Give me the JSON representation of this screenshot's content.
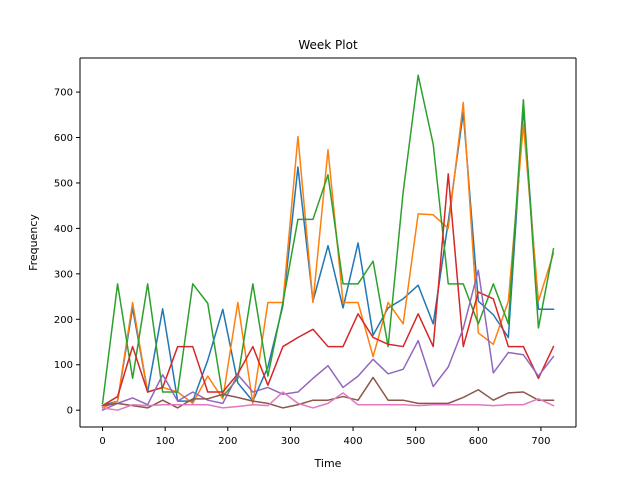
{
  "chart_data": {
    "type": "line",
    "title": "Week Plot",
    "xlabel": "Time",
    "ylabel": "Frequency",
    "xlim": [
      -36,
      756
    ],
    "ylim": [
      -37,
      775
    ],
    "xticks": [
      0,
      100,
      200,
      300,
      400,
      500,
      600,
      700
    ],
    "yticks": [
      0,
      100,
      200,
      300,
      400,
      500,
      600,
      700
    ],
    "x": [
      0,
      24,
      48,
      72,
      96,
      120,
      144,
      168,
      192,
      216,
      240,
      264,
      288,
      312,
      336,
      360,
      384,
      408,
      432,
      456,
      480,
      504,
      528,
      552,
      576,
      600,
      624,
      648,
      672,
      696,
      720
    ],
    "series": [
      {
        "color": "#1f77b4",
        "values": [
          10,
          20,
          225,
          40,
          223,
          20,
          20,
          110,
          222,
          60,
          20,
          95,
          230,
          535,
          240,
          362,
          225,
          368,
          165,
          225,
          245,
          275,
          190,
          415,
          655,
          240,
          210,
          160,
          665,
          222,
          222
        ]
      },
      {
        "color": "#ff7f0e",
        "values": [
          5,
          20,
          237,
          40,
          50,
          40,
          15,
          75,
          25,
          237,
          15,
          237,
          237,
          602,
          237,
          573,
          237,
          237,
          118,
          237,
          190,
          432,
          430,
          400,
          677,
          170,
          145,
          240,
          630,
          240,
          345
        ]
      },
      {
        "color": "#2ca02c",
        "values": [
          15,
          278,
          70,
          278,
          40,
          40,
          278,
          235,
          30,
          70,
          278,
          75,
          237,
          420,
          420,
          518,
          278,
          278,
          328,
          140,
          480,
          737,
          585,
          278,
          278,
          190,
          278,
          190,
          683,
          181,
          355
        ]
      },
      {
        "color": "#d62728",
        "values": [
          10,
          30,
          140,
          40,
          50,
          140,
          140,
          40,
          40,
          80,
          140,
          55,
          140,
          160,
          178,
          140,
          140,
          212,
          160,
          145,
          140,
          212,
          140,
          520,
          140,
          260,
          245,
          140,
          140,
          70,
          140
        ]
      },
      {
        "color": "#9467bd",
        "values": [
          0,
          15,
          27,
          12,
          78,
          20,
          40,
          22,
          15,
          78,
          40,
          50,
          35,
          40,
          70,
          98,
          50,
          75,
          112,
          80,
          90,
          153,
          52,
          95,
          180,
          308,
          82,
          127,
          122,
          75,
          118
        ]
      },
      {
        "color": "#8c564b",
        "values": [
          10,
          15,
          10,
          5,
          22,
          5,
          25,
          25,
          35,
          28,
          20,
          15,
          5,
          12,
          22,
          22,
          30,
          22,
          72,
          22,
          22,
          15,
          15,
          15,
          28,
          45,
          22,
          38,
          40,
          22,
          22
        ]
      },
      {
        "color": "#e377c2",
        "values": [
          5,
          0,
          12,
          10,
          12,
          12,
          12,
          12,
          5,
          8,
          12,
          10,
          40,
          15,
          5,
          15,
          38,
          12,
          12,
          12,
          12,
          10,
          12,
          12,
          12,
          12,
          10,
          12,
          12,
          25,
          10
        ]
      }
    ]
  }
}
